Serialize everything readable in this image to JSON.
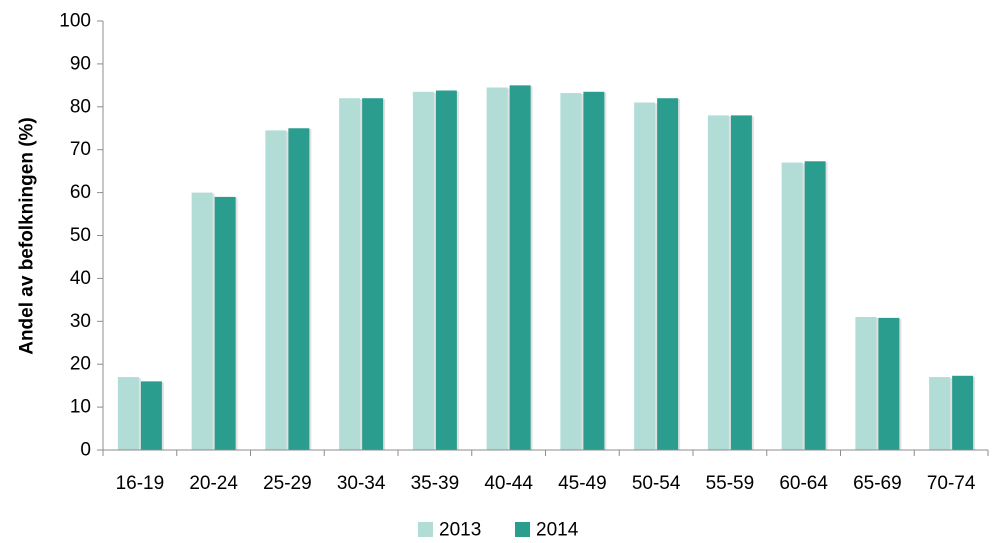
{
  "chart_data": {
    "type": "bar",
    "title": "",
    "xlabel": "",
    "ylabel": "Andel av befolkningen (%)",
    "ylim": [
      0,
      100
    ],
    "yticks": [
      0,
      10,
      20,
      30,
      40,
      50,
      60,
      70,
      80,
      90,
      100
    ],
    "grid": false,
    "legend_position": "bottom",
    "categories": [
      "16-19",
      "20-24",
      "25-29",
      "30-34",
      "35-39",
      "40-44",
      "45-49",
      "50-54",
      "55-59",
      "60-64",
      "65-69",
      "70-74"
    ],
    "series": [
      {
        "name": "2013",
        "color": "#b2dcd6",
        "values": [
          17,
          60,
          74.5,
          82,
          83.5,
          84.5,
          83.2,
          81,
          78,
          67,
          31,
          17
        ]
      },
      {
        "name": "2014",
        "color": "#2a9d8f",
        "values": [
          16,
          59,
          75,
          82,
          83.8,
          85,
          83.5,
          82,
          78,
          67.3,
          30.8,
          17.3
        ]
      }
    ]
  }
}
